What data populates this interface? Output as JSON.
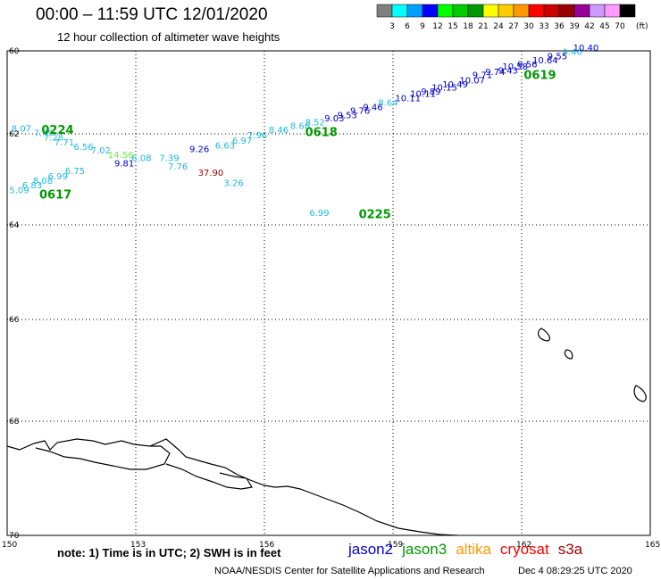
{
  "header": {
    "title": "00:00 – 11:59 UTC 12/01/2020",
    "subtitle": "12 hour collection of altimeter wave heights"
  },
  "colorbar": {
    "colors": [
      "#808080",
      "#00ffff",
      "#00a0ff",
      "#0000ff",
      "#00ff00",
      "#00cc00",
      "#009900",
      "#ffff00",
      "#ffcc00",
      "#ff9900",
      "#ff0000",
      "#cc0000",
      "#990000",
      "#990099",
      "#cc99ff",
      "#ff99ff",
      "#000000"
    ],
    "labels": [
      "3",
      "6",
      "9",
      "12",
      "15",
      "18",
      "21",
      "24",
      "27",
      "30",
      "33",
      "36",
      "39",
      "42",
      "45",
      "70"
    ],
    "unit": "(ft)"
  },
  "axes": {
    "lat_labels": [
      "60",
      "62",
      "64",
      "66",
      "68",
      "70"
    ],
    "lon_labels": [
      "150",
      "153",
      "156",
      "159",
      "162",
      "165"
    ]
  },
  "chart_data": {
    "type": "scatter",
    "xlim": [
      150,
      165
    ],
    "ylim": [
      -70,
      -60
    ],
    "grid": true,
    "points": [
      {
        "lon": 150.1,
        "lat": -61.95,
        "v": "8.07",
        "c": "#20b8e0"
      },
      {
        "lon": 150.62,
        "lat": -62.05,
        "v": "7.49",
        "c": "#20b8e0"
      },
      {
        "lon": 150.85,
        "lat": -62.15,
        "v": "7.28",
        "c": "#20b8e0"
      },
      {
        "lon": 151.1,
        "lat": -62.25,
        "v": "7.71",
        "c": "#20b8e0"
      },
      {
        "lon": 151.55,
        "lat": -62.35,
        "v": "6.56",
        "c": "#20b8e0"
      },
      {
        "lon": 151.95,
        "lat": -62.43,
        "v": "7.02",
        "c": "#20b8e0"
      },
      {
        "lon": 152.35,
        "lat": -62.53,
        "v": "14.56",
        "c": "#66ee33"
      },
      {
        "lon": 152.9,
        "lat": -62.6,
        "v": "6.08",
        "c": "#20b8e0"
      },
      {
        "lon": 153.55,
        "lat": -62.6,
        "v": "7.39",
        "c": "#20b8e0"
      },
      {
        "lon": 153.75,
        "lat": -62.78,
        "v": "7.76",
        "c": "#20b8e0"
      },
      {
        "lon": 154.45,
        "lat": -62.92,
        "v": "37.90",
        "c": "#990000"
      },
      {
        "lon": 155.05,
        "lat": -63.15,
        "v": "3.26",
        "c": "#20b8e0"
      },
      {
        "lon": 152.5,
        "lat": -62.72,
        "v": "9.81",
        "c": "#0000cc"
      },
      {
        "lon": 151.35,
        "lat": -62.88,
        "v": "6.75",
        "c": "#20b8e0"
      },
      {
        "lon": 150.95,
        "lat": -63.0,
        "v": "6.99",
        "c": "#20b8e0"
      },
      {
        "lon": 150.6,
        "lat": -63.1,
        "v": "8.08",
        "c": "#20b8e0"
      },
      {
        "lon": 150.35,
        "lat": -63.2,
        "v": "6.83",
        "c": "#20b8e0"
      },
      {
        "lon": 150.05,
        "lat": -63.3,
        "v": "5.09",
        "c": "#20b8e0"
      },
      {
        "lon": 154.25,
        "lat": -62.4,
        "v": "9.26",
        "c": "#0000cc"
      },
      {
        "lon": 154.85,
        "lat": -62.32,
        "v": "6.63",
        "c": "#20b8e0"
      },
      {
        "lon": 155.25,
        "lat": -62.22,
        "v": "6.97",
        "c": "#20b8e0"
      },
      {
        "lon": 155.6,
        "lat": -62.1,
        "v": "7.96",
        "c": "#20b8e0"
      },
      {
        "lon": 156.1,
        "lat": -61.98,
        "v": "8.46",
        "c": "#20b8e0"
      },
      {
        "lon": 156.6,
        "lat": -61.88,
        "v": "8.66",
        "c": "#20b8e0"
      },
      {
        "lon": 156.95,
        "lat": -61.8,
        "v": "8.52",
        "c": "#20b8e0"
      },
      {
        "lon": 157.4,
        "lat": -61.7,
        "v": "9.03",
        "c": "#0000cc"
      },
      {
        "lon": 157.7,
        "lat": -61.62,
        "v": "9.53",
        "c": "#0000cc"
      },
      {
        "lon": 158.0,
        "lat": -61.52,
        "v": "9.76",
        "c": "#0000cc"
      },
      {
        "lon": 158.3,
        "lat": -61.43,
        "v": "9.46",
        "c": "#0000cc"
      },
      {
        "lon": 158.65,
        "lat": -61.32,
        "v": "8.64",
        "c": "#20b8e0"
      },
      {
        "lon": 159.05,
        "lat": -61.22,
        "v": "10.11",
        "c": "#0000cc"
      },
      {
        "lon": 159.4,
        "lat": -61.11,
        "v": "10.11",
        "c": "#0000cc"
      },
      {
        "lon": 159.65,
        "lat": -61.05,
        "v": "9.89",
        "c": "#0000cc"
      },
      {
        "lon": 159.9,
        "lat": -60.96,
        "v": "10.15",
        "c": "#0000cc"
      },
      {
        "lon": 160.15,
        "lat": -60.88,
        "v": "10.49",
        "c": "#0000cc"
      },
      {
        "lon": 160.55,
        "lat": -60.78,
        "v": "10.07",
        "c": "#0000cc"
      },
      {
        "lon": 160.85,
        "lat": -60.66,
        "v": "9.71",
        "c": "#0000cc"
      },
      {
        "lon": 161.15,
        "lat": -60.58,
        "v": "9.74",
        "c": "#0000cc"
      },
      {
        "lon": 161.45,
        "lat": -60.55,
        "v": "9.43",
        "c": "#0000cc"
      },
      {
        "lon": 161.55,
        "lat": -60.45,
        "v": "10.58",
        "c": "#0000cc"
      },
      {
        "lon": 161.9,
        "lat": -60.4,
        "v": "9.56",
        "c": "#0000cc"
      },
      {
        "lon": 162.25,
        "lat": -60.3,
        "v": "10.64",
        "c": "#0000cc"
      },
      {
        "lon": 162.6,
        "lat": -60.2,
        "v": "9.55",
        "c": "#0000cc"
      },
      {
        "lon": 162.95,
        "lat": -60.1,
        "v": "9.46",
        "c": "#20b8e0"
      },
      {
        "lon": 163.2,
        "lat": -60.0,
        "v": "10.40",
        "c": "#0000cc"
      },
      {
        "lon": 157.05,
        "lat": -63.8,
        "v": "6.99",
        "c": "#20b8e0"
      }
    ],
    "pass_labels": [
      {
        "lon": 150.8,
        "lat": -62.0,
        "v": "0224"
      },
      {
        "lon": 150.75,
        "lat": -63.42,
        "v": "0617"
      },
      {
        "lon": 156.95,
        "lat": -62.05,
        "v": "0618"
      },
      {
        "lon": 162.05,
        "lat": -60.68,
        "v": "0619"
      },
      {
        "lon": 158.2,
        "lat": -63.85,
        "v": "0225"
      }
    ]
  },
  "footer": {
    "note": "note: 1) Time is in UTC; 2) SWH is in feet",
    "legend": [
      {
        "name": "jason2",
        "color": "#0000cc"
      },
      {
        "name": "jason3",
        "color": "#009900"
      },
      {
        "name": "altika",
        "color": "#ff9900"
      },
      {
        "name": "cryosat",
        "color": "#ff0000"
      },
      {
        "name": "s3a",
        "color": "#990000"
      }
    ],
    "credit": "NOAA/NESDIS Center for Satellite Applications and Research",
    "timestamp": "Dec  4 08:29:25 UTC 2020"
  }
}
